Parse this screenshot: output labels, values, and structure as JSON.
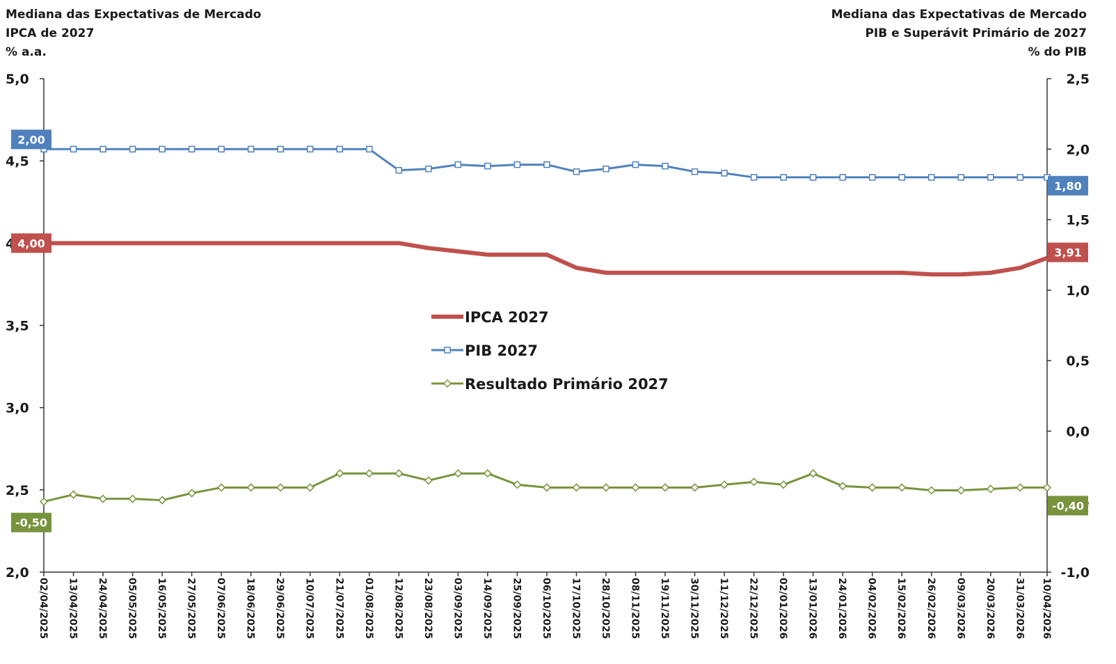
{
  "chart_data": {
    "type": "line",
    "titles": {
      "left": [
        "Mediana das Expectativas de Mercado",
        "IPCA de 2027",
        "% a.a."
      ],
      "right": [
        "Mediana das Expectativas de Mercado",
        "PIB e Superávit Primário de 2027",
        "% do PIB"
      ]
    },
    "x": [
      "02/04/2025",
      "13/04/2025",
      "24/04/2025",
      "05/05/2025",
      "16/05/2025",
      "27/05/2025",
      "07/06/2025",
      "18/06/2025",
      "29/06/2025",
      "10/07/2025",
      "21/07/2025",
      "01/08/2025",
      "12/08/2025",
      "23/08/2025",
      "03/09/2025",
      "14/09/2025",
      "25/09/2025",
      "06/10/2025",
      "17/10/2025",
      "28/10/2025",
      "08/11/2025",
      "19/11/2025",
      "30/11/2025",
      "11/12/2025",
      "22/12/2025",
      "02/01/2026",
      "13/01/2026",
      "24/01/2026",
      "04/02/2026",
      "15/02/2026",
      "26/02/2026",
      "09/03/2026",
      "20/03/2026",
      "31/03/2026",
      "10/04/2026"
    ],
    "xticks": [
      "02/04/2025",
      "13/04/2025",
      "24/04/2025",
      "05/05/2025",
      "16/05/2025",
      "27/05/2025",
      "07/06/2025",
      "18/06/2025",
      "29/06/2025",
      "10/07/2025",
      "21/07/2025",
      "01/08/2025",
      "12/08/2025",
      "23/08/2025",
      "03/09/2025",
      "14/09/2025",
      "25/09/2025",
      "06/10/2025",
      "17/10/2025",
      "28/10/2025",
      "08/11/2025",
      "19/11/2025",
      "30/11/2025",
      "11/12/2025",
      "22/12/2025",
      "02/01/2026",
      "13/01/2026",
      "24/01/2026",
      "04/02/2026",
      "15/02/2026",
      "26/02/2026",
      "09/03/2026",
      "20/03/2026",
      "31/03/2026",
      "10/04/2026"
    ],
    "xlim": [
      "02/04/2025",
      "10/04/2026"
    ],
    "ylim": [
      2.0,
      5.0
    ],
    "yticks": [
      {
        "value": 2.0,
        "label": "2,0"
      },
      {
        "value": 2.5,
        "label": "2,5"
      },
      {
        "value": 3.0,
        "label": "3,0"
      },
      {
        "value": 3.5,
        "label": "3,5"
      },
      {
        "value": 4.0,
        "label": "4,0"
      },
      {
        "value": 4.5,
        "label": "4,5"
      },
      {
        "value": 5.0,
        "label": "5,0"
      }
    ],
    "y2lim": [
      -1.0,
      2.5
    ],
    "y2ticks": [
      {
        "value": -1.0,
        "label": "-1,0"
      },
      {
        "value": -0.5,
        "label": "-0,5"
      },
      {
        "value": 0.0,
        "label": "0,0"
      },
      {
        "value": 0.5,
        "label": "0,5"
      },
      {
        "value": 1.0,
        "label": "1,0"
      },
      {
        "value": 1.5,
        "label": "1,5"
      },
      {
        "value": 2.0,
        "label": "2,0"
      },
      {
        "value": 2.5,
        "label": "2,5"
      }
    ],
    "grid": false,
    "legend": "center",
    "series": [
      {
        "name": "IPCA 2027",
        "color": "#c0504d",
        "marker": "none",
        "values": [
          4.0,
          4.0,
          4.0,
          4.0,
          4.0,
          4.0,
          4.0,
          4.0,
          4.0,
          4.0,
          4.0,
          4.0,
          4.0,
          3.97,
          3.95,
          3.93,
          3.93,
          3.93,
          3.85,
          3.82,
          3.82,
          3.82,
          3.82,
          3.82,
          3.82,
          3.82,
          3.82,
          3.82,
          3.82,
          3.82,
          3.81,
          3.81,
          3.82,
          3.85,
          3.91
        ],
        "value_labels": [
          "4,00",
          null,
          null,
          null,
          null,
          null,
          null,
          null,
          null,
          null,
          null,
          null,
          null,
          null,
          null,
          null,
          null,
          null,
          null,
          null,
          null,
          null,
          null,
          null,
          null,
          null,
          null,
          null,
          null,
          null,
          null,
          null,
          null,
          null,
          "3,91"
        ]
      },
      {
        "name": "PIB 2027",
        "color": "#4f81bd",
        "marker": "square",
        "axis": "y2",
        "values": [
          2.0,
          2.0,
          2.0,
          2.0,
          2.0,
          2.0,
          2.0,
          2.0,
          2.0,
          2.0,
          2.0,
          2.0,
          1.85,
          1.86,
          1.89,
          1.88,
          1.89,
          1.89,
          1.84,
          1.86,
          1.89,
          1.88,
          1.84,
          1.83,
          1.8,
          1.8,
          1.8,
          1.8,
          1.8,
          1.8,
          1.8,
          1.8,
          1.8,
          1.8,
          1.8
        ],
        "value_labels": [
          "2,00",
          null,
          null,
          null,
          null,
          null,
          null,
          null,
          null,
          null,
          null,
          null,
          null,
          null,
          null,
          null,
          null,
          null,
          null,
          null,
          null,
          null,
          null,
          null,
          null,
          null,
          null,
          null,
          null,
          null,
          null,
          null,
          null,
          null,
          "1,80"
        ]
      },
      {
        "name": "Resultado Primário 2027",
        "color": "#77933c",
        "marker": "diamond",
        "axis": "y2",
        "values": [
          -0.5,
          -0.45,
          -0.48,
          -0.48,
          -0.49,
          -0.44,
          -0.4,
          -0.4,
          -0.4,
          -0.4,
          -0.3,
          -0.3,
          -0.3,
          -0.35,
          -0.3,
          -0.3,
          -0.38,
          -0.4,
          -0.4,
          -0.4,
          -0.4,
          -0.4,
          -0.4,
          -0.38,
          -0.36,
          -0.38,
          -0.3,
          -0.39,
          -0.4,
          -0.4,
          -0.42,
          -0.42,
          -0.41,
          -0.4,
          -0.4
        ],
        "value_labels": [
          "-0,50",
          null,
          null,
          null,
          null,
          null,
          null,
          null,
          null,
          null,
          null,
          null,
          null,
          null,
          null,
          null,
          null,
          null,
          null,
          null,
          null,
          null,
          null,
          null,
          null,
          null,
          null,
          null,
          null,
          null,
          null,
          null,
          null,
          null,
          "-0,40"
        ]
      }
    ]
  }
}
